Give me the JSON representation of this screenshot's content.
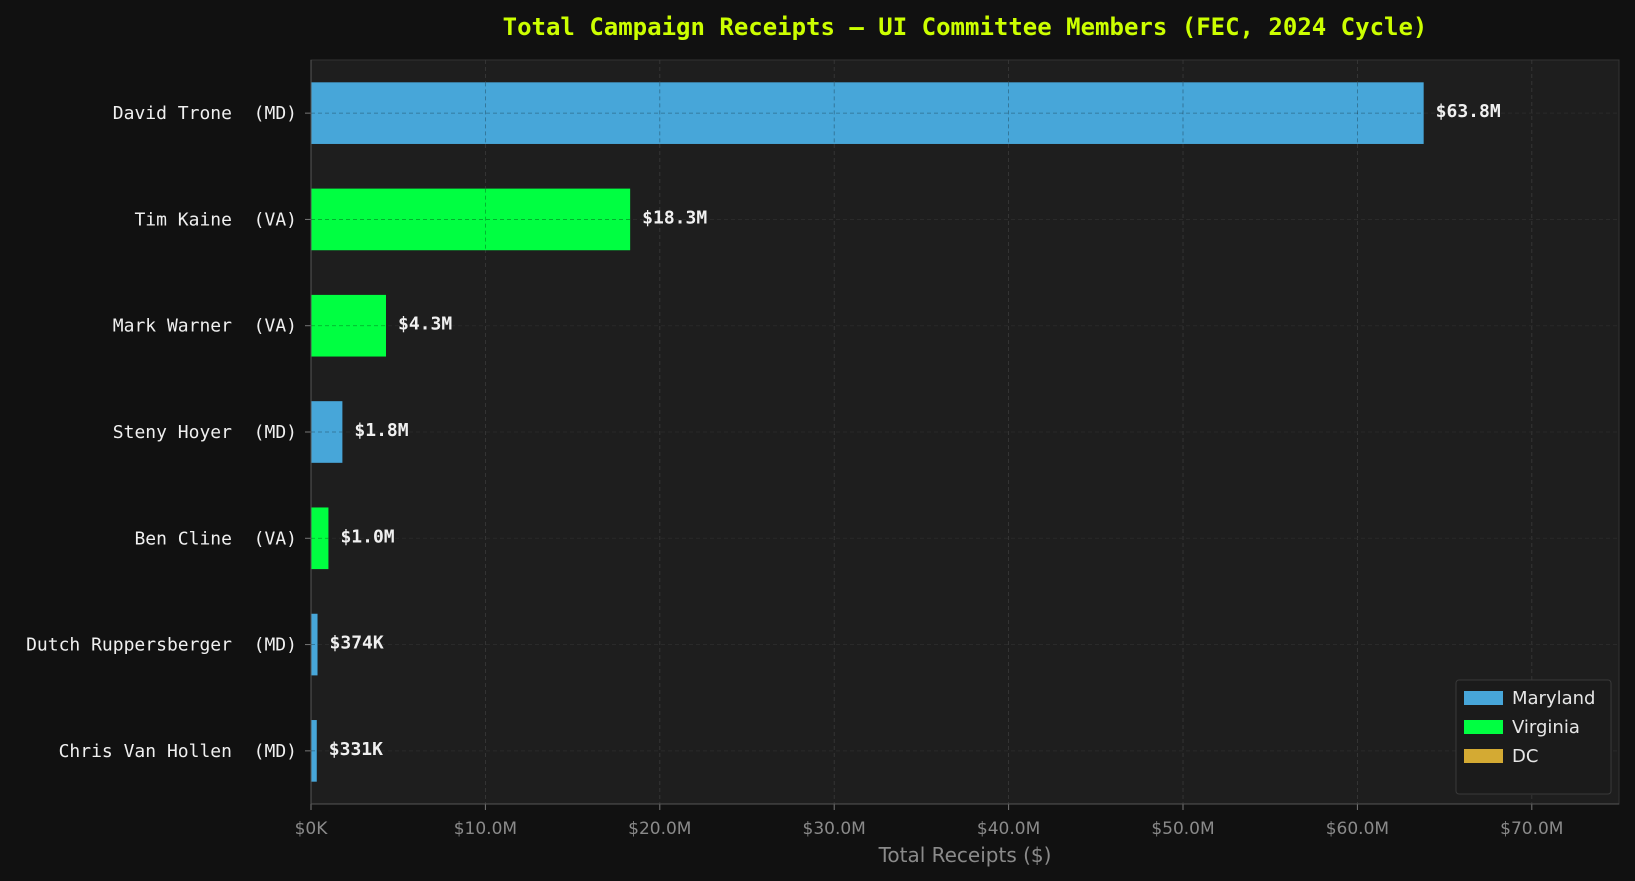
{
  "chart_data": {
    "type": "bar",
    "orientation": "horizontal",
    "title": "Total Campaign Receipts — UI Committee Members (FEC, 2024 Cycle)",
    "xlabel": "Total Receipts ($)",
    "xlim": [
      0,
      75000000
    ],
    "xticks": [
      0,
      10000000,
      20000000,
      30000000,
      40000000,
      50000000,
      60000000,
      70000000
    ],
    "xtick_labels": [
      "$0K",
      "$10.0M",
      "$20.0M",
      "$30.0M",
      "$40.0M",
      "$50.0M",
      "$60.0M",
      "$70.0M"
    ],
    "grid": true,
    "legend_position": "bottom-right",
    "categories": [
      "David Trone  (MD)",
      "Tim Kaine  (VA)",
      "Mark Warner  (VA)",
      "Steny Hoyer  (MD)",
      "Ben Cline  (VA)",
      "Dutch Ruppersberger  (MD)",
      "Chris Van Hollen  (MD)"
    ],
    "values": [
      63800000,
      18300000,
      4300000,
      1800000,
      1000000,
      374000,
      331000
    ],
    "value_labels": [
      "$63.8M",
      "$18.3M",
      "$4.3M",
      "$1.8M",
      "$1.0M",
      "$374K",
      "$331K"
    ],
    "bar_groups": [
      "Maryland",
      "Virginia",
      "Virginia",
      "Maryland",
      "Virginia",
      "Maryland",
      "Maryland"
    ],
    "legend": [
      {
        "name": "Maryland",
        "color": "#47a6d9"
      },
      {
        "name": "Virginia",
        "color": "#00ff41"
      },
      {
        "name": "DC",
        "color": "#d4aa33"
      }
    ],
    "colors": {
      "background": "#111111",
      "plot_background": "#1e1e1e",
      "title": "#ccff00"
    }
  }
}
